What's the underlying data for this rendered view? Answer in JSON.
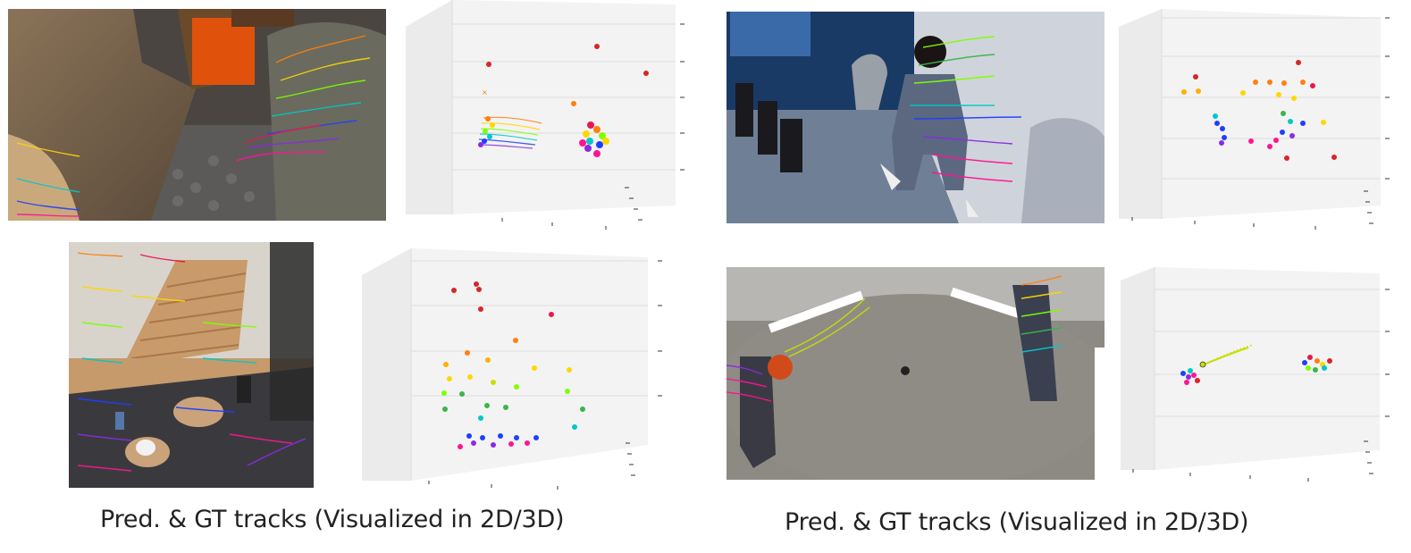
{
  "captions": {
    "left": "Pred. & GT tracks (Visualized in 2D/3D)",
    "right": "Pred. & GT tracks (Visualized in 2D/3D)"
  },
  "panels": [
    {
      "id": "scene-tl",
      "kind": "video-frame",
      "content": "rocky cave scene with animated characters and rainbow point tracks"
    },
    {
      "id": "plot-tl",
      "kind": "3d-track-plot"
    },
    {
      "id": "scene-bl",
      "kind": "video-frame",
      "content": "kitchen with staircase and dining table with rainbow point tracks"
    },
    {
      "id": "plot-bl",
      "kind": "3d-track-plot"
    },
    {
      "id": "scene-tr",
      "kind": "video-frame",
      "content": "office room with person and rainbow point tracks"
    },
    {
      "id": "plot-tr",
      "kind": "3d-track-plot"
    },
    {
      "id": "scene-br",
      "kind": "video-frame",
      "content": "fisheye room with two people and basketball with rainbow point tracks"
    },
    {
      "id": "plot-br",
      "kind": "3d-track-plot"
    }
  ],
  "colors": {
    "gt_marker": "#222222",
    "track_palette": [
      "#e6194b",
      "#ff7f0e",
      "#ffd700",
      "#7fff00",
      "#00c8c8",
      "#1f3fff",
      "#8a2be2",
      "#ff1493"
    ]
  }
}
